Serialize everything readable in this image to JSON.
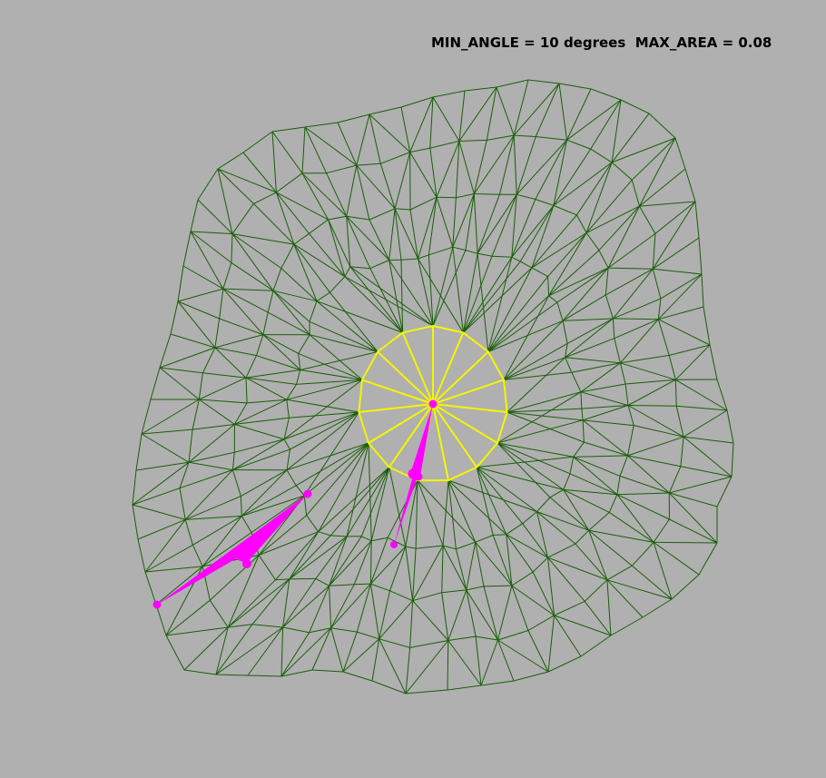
{
  "header": {
    "min_angle_label": "MIN_ANGLE = 10 degrees",
    "max_area_label": "MAX_AREA = 0.08"
  },
  "colors": {
    "background": "#b0b0b0",
    "mesh_edge": "#1a5e0a",
    "ring_edge": "#f5f500",
    "marker": "#ff00ff"
  }
}
